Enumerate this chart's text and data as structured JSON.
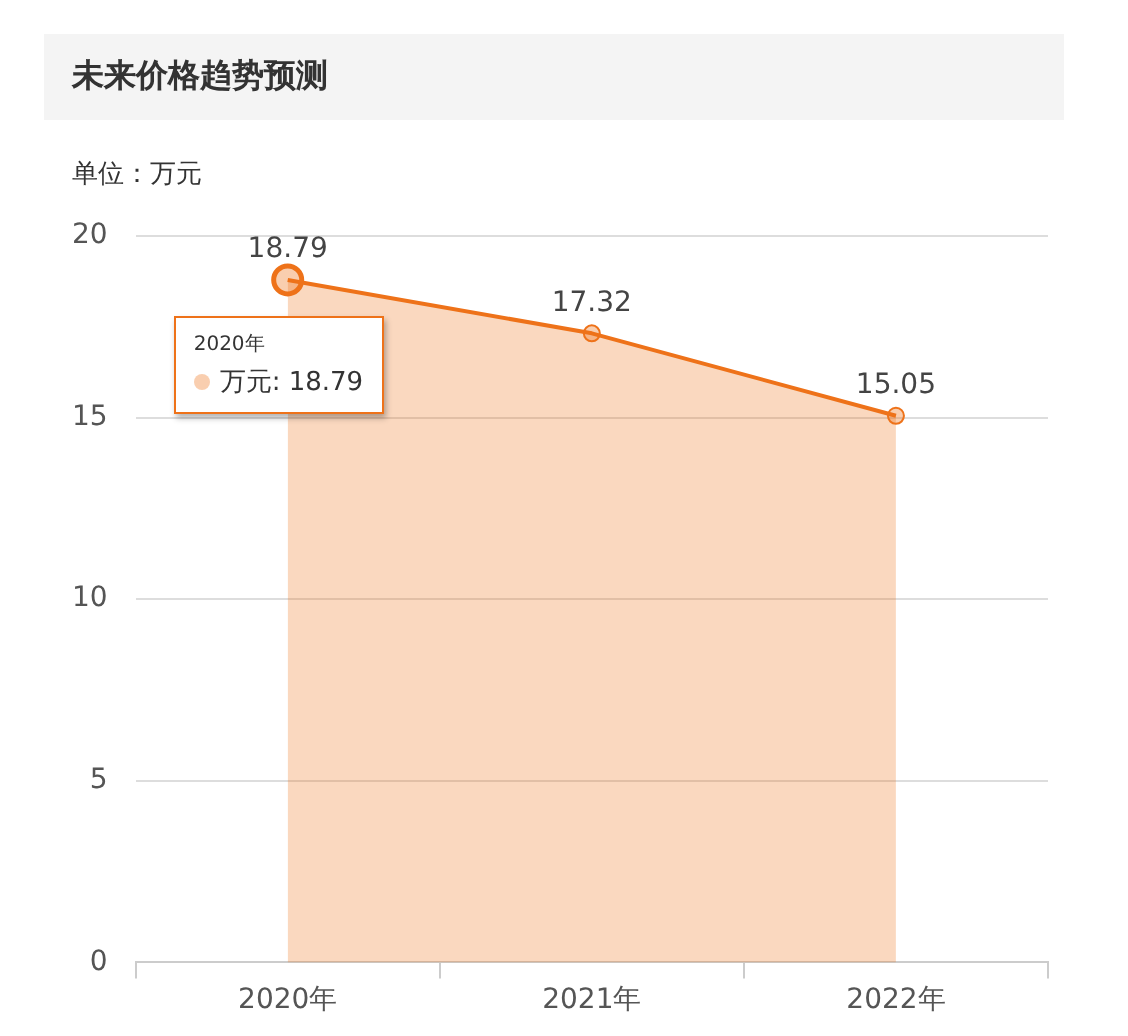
{
  "chart_data": {
    "type": "area",
    "title": "未来价格趋势预测",
    "subtitle": "单位：万元",
    "categories": [
      "2020年",
      "2021年",
      "2022年"
    ],
    "series": [
      {
        "color": "#ee7219",
        "values": [
          18.79,
          17.32,
          15.05
        ]
      }
    ],
    "annotations": [
      "2020年",
      "万元: 18.79"
    ],
    "ylim": [
      0,
      20
    ],
    "yticks": [
      0,
      5,
      10,
      15,
      20
    ],
    "grid": "y",
    "legend": false,
    "marker": "circle",
    "data_labels": true
  }
}
